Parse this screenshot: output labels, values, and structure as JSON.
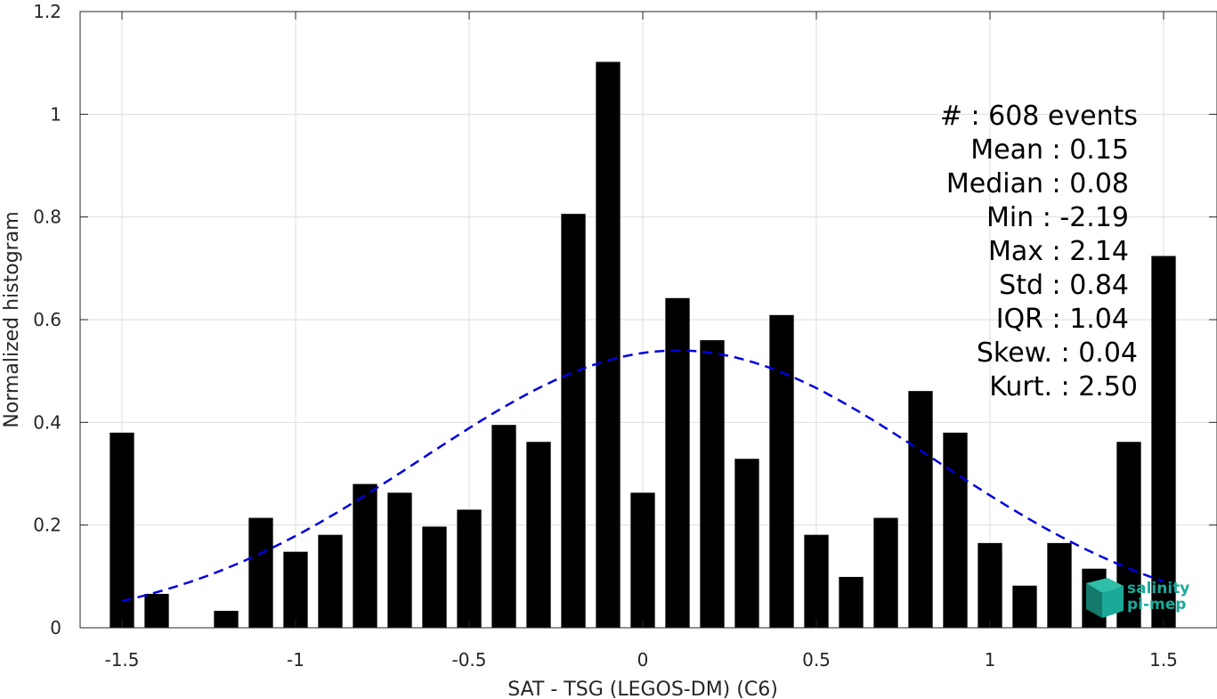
{
  "chart_data": {
    "type": "bar",
    "xlabel": "SAT - TSG (LEGOS-DM) (C6)",
    "ylabel": "Normalized histogram",
    "xlim": [
      -1.6,
      1.6
    ],
    "ylim": [
      0,
      1.2
    ],
    "xticks": [
      -1.5,
      -1,
      -0.5,
      0,
      0.5,
      1,
      1.5
    ],
    "xtick_labels": [
      "-1.5",
      "-1",
      "-0.5",
      "0",
      "0.5",
      "1",
      "1.5"
    ],
    "yticks": [
      0,
      0.2,
      0.4,
      0.6,
      0.8,
      1,
      1.2
    ],
    "ytick_labels": [
      "0",
      "0.2",
      "0.4",
      "0.6",
      "0.8",
      "1",
      "1.2"
    ],
    "grid": true,
    "bar_width": 0.07,
    "bar_color": "#000000",
    "bins": [
      -1.5,
      -1.4,
      -1.3,
      -1.2,
      -1.1,
      -1.0,
      -0.9,
      -0.8,
      -0.7,
      -0.6,
      -0.5,
      -0.4,
      -0.3,
      -0.2,
      -0.1,
      0.0,
      0.1,
      0.2,
      0.3,
      0.4,
      0.5,
      0.6,
      0.7,
      0.8,
      0.9,
      1.0,
      1.1,
      1.2,
      1.3,
      1.4,
      1.5
    ],
    "values": [
      0.38,
      0.066,
      0.0,
      0.033,
      0.214,
      0.148,
      0.181,
      0.28,
      0.263,
      0.197,
      0.23,
      0.395,
      0.362,
      0.806,
      1.102,
      0.263,
      0.642,
      0.56,
      0.329,
      0.609,
      0.181,
      0.099,
      0.214,
      0.461,
      0.38,
      0.165,
      0.082,
      0.165,
      0.115,
      0.362,
      0.724
    ],
    "fit": {
      "type": "normal",
      "mean": 0.1,
      "std": 0.74,
      "peak": 0.54,
      "x_range": [
        -1.5,
        1.5
      ],
      "color": "#0000dd",
      "style": "dashed"
    },
    "stats": [
      "#  : 608 events",
      "Mean : 0.15",
      "Median : 0.08",
      "Min : -2.19",
      "Max : 2.14",
      "Std : 0.84",
      "IQR : 1.04",
      "Skew. : 0.04",
      "Kurt. : 2.50"
    ]
  },
  "logo": {
    "line1": "salinity",
    "line2": "pi-mep",
    "color": "#1aa999"
  }
}
